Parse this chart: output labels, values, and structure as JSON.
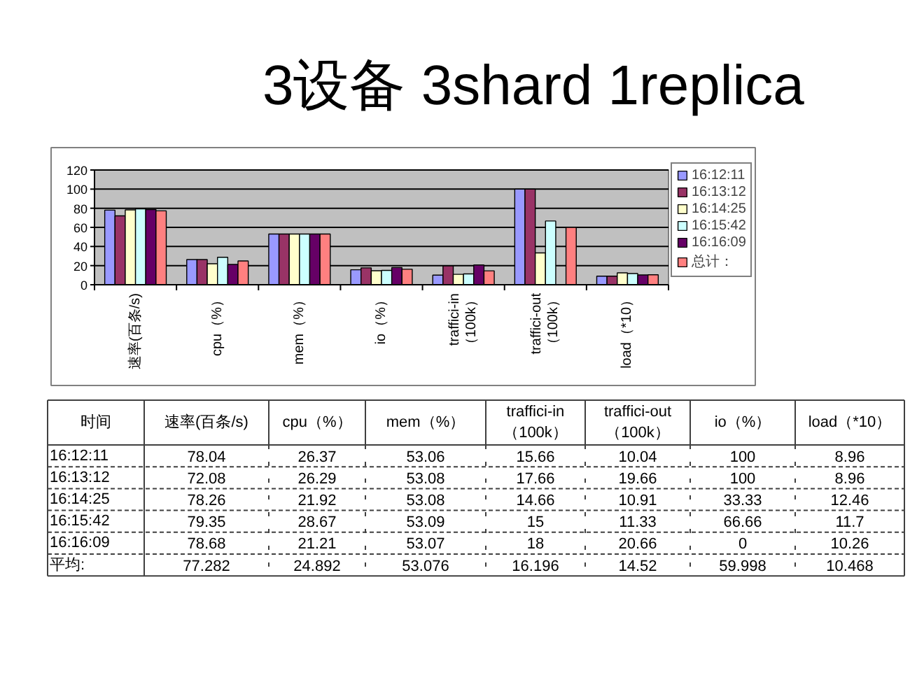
{
  "chart_data": [
    {
      "type": "bar",
      "title": "3设备 3shard 1replica",
      "categories": [
        "速率(百条/s)",
        "cpu（%）",
        "mem（%）",
        "io（%）",
        "traffici-in\n（100k）",
        "traffici-out\n（100k）",
        "load（*10）"
      ],
      "series": [
        {
          "name": "16:12:11",
          "color": "#9999ff",
          "values": [
            78.04,
            26.37,
            53.06,
            15.66,
            10.04,
            100,
            8.96
          ]
        },
        {
          "name": "16:13:12",
          "color": "#993366",
          "values": [
            72.08,
            26.29,
            53.08,
            17.66,
            19.66,
            100,
            8.96
          ]
        },
        {
          "name": "16:14:25",
          "color": "#ffffcc",
          "values": [
            78.26,
            21.92,
            53.08,
            14.66,
            10.91,
            33.33,
            12.46
          ]
        },
        {
          "name": "16:15:42",
          "color": "#ccffff",
          "values": [
            79.35,
            28.67,
            53.09,
            15,
            11.33,
            66.66,
            11.7
          ]
        },
        {
          "name": "16:16:09",
          "color": "#660066",
          "values": [
            78.68,
            21.21,
            53.07,
            18,
            20.66,
            0,
            10.26
          ]
        },
        {
          "name": "总计：",
          "color": "#ff8080",
          "values": [
            77.282,
            24.892,
            53.076,
            16.196,
            14.52,
            59.998,
            10.468
          ]
        }
      ],
      "ylim": [
        0,
        120
      ],
      "yticks": [
        0,
        20,
        40,
        60,
        80,
        100,
        120
      ],
      "grid": "y",
      "legend": "right"
    },
    {
      "type": "heatmap",
      "ylabel": "时间",
      "data_labels": true,
      "categories": [
        "速率(百条/s)",
        "cpu（%）",
        "mem（%）",
        "traffici-in\n（100k）",
        "traffici-out\n（100k）",
        "io（%）",
        "load（*10）"
      ],
      "y_categories": [
        "16:12:11",
        "16:13:12",
        "16:14:25",
        "16:15:42",
        "16:16:09",
        "平均:"
      ],
      "cells": [
        [
          78.04,
          26.37,
          53.06,
          15.66,
          10.04,
          100,
          8.96
        ],
        [
          72.08,
          26.29,
          53.08,
          17.66,
          19.66,
          100,
          8.96
        ],
        [
          78.26,
          21.92,
          53.08,
          14.66,
          10.91,
          33.33,
          12.46
        ],
        [
          79.35,
          28.67,
          53.09,
          15,
          11.33,
          66.66,
          11.7
        ],
        [
          78.68,
          21.21,
          53.07,
          18,
          20.66,
          0,
          10.26
        ],
        [
          77.282,
          24.892,
          53.076,
          16.196,
          14.52,
          59.998,
          10.468
        ]
      ]
    }
  ]
}
